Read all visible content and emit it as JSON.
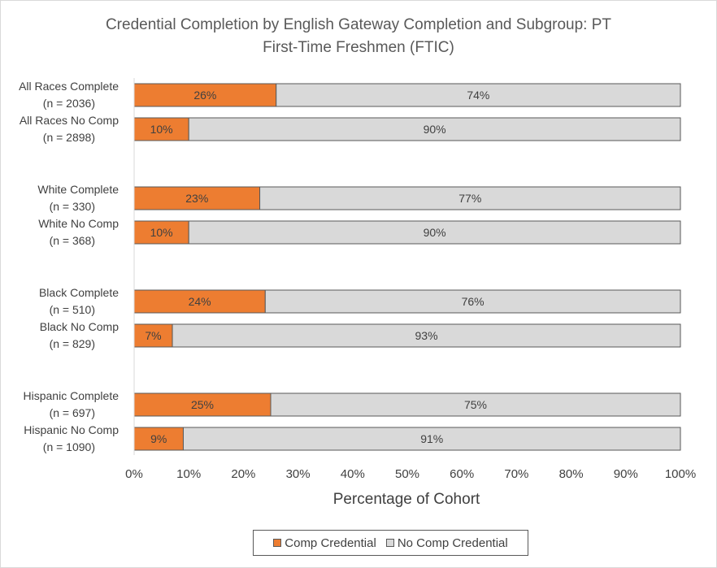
{
  "chart_data": {
    "type": "bar",
    "orientation": "horizontal",
    "stacked": true,
    "title_line1": "Credential Completion by English Gateway Completion and Subgroup: PT",
    "title_line2": "First-Time Freshmen (FTIC)",
    "xlabel": "Percentage of Cohort",
    "xlim": [
      0,
      100
    ],
    "xticks": [
      "0%",
      "10%",
      "20%",
      "30%",
      "40%",
      "50%",
      "60%",
      "70%",
      "80%",
      "90%",
      "100%"
    ],
    "categories": [
      {
        "line1": "All Races Complete",
        "line2": "(n = 2036)"
      },
      {
        "line1": "All Races No Comp",
        "line2": "(n = 2898)"
      },
      {
        "line1": "White Complete",
        "line2": "(n = 330)"
      },
      {
        "line1": "White No Comp",
        "line2": "(n = 368)"
      },
      {
        "line1": "Black Complete",
        "line2": "(n = 510)"
      },
      {
        "line1": "Black No Comp",
        "line2": "(n = 829)"
      },
      {
        "line1": "Hispanic Complete",
        "line2": "(n = 697)"
      },
      {
        "line1": "Hispanic No Comp",
        "line2": "(n = 1090)"
      }
    ],
    "series": [
      {
        "name": "Comp Credential",
        "color": "#ed7d31",
        "values": [
          26,
          10,
          23,
          10,
          24,
          7,
          25,
          9
        ],
        "labels": [
          "26%",
          "10%",
          "23%",
          "10%",
          "24%",
          "7%",
          "25%",
          "9%"
        ]
      },
      {
        "name": "No Comp Credential",
        "color": "#d9d9d9",
        "values": [
          74,
          90,
          77,
          90,
          76,
          93,
          75,
          91
        ],
        "labels": [
          "74%",
          "90%",
          "77%",
          "90%",
          "76%",
          "93%",
          "75%",
          "91%"
        ]
      }
    ],
    "grid": false,
    "legend_position": "bottom"
  }
}
